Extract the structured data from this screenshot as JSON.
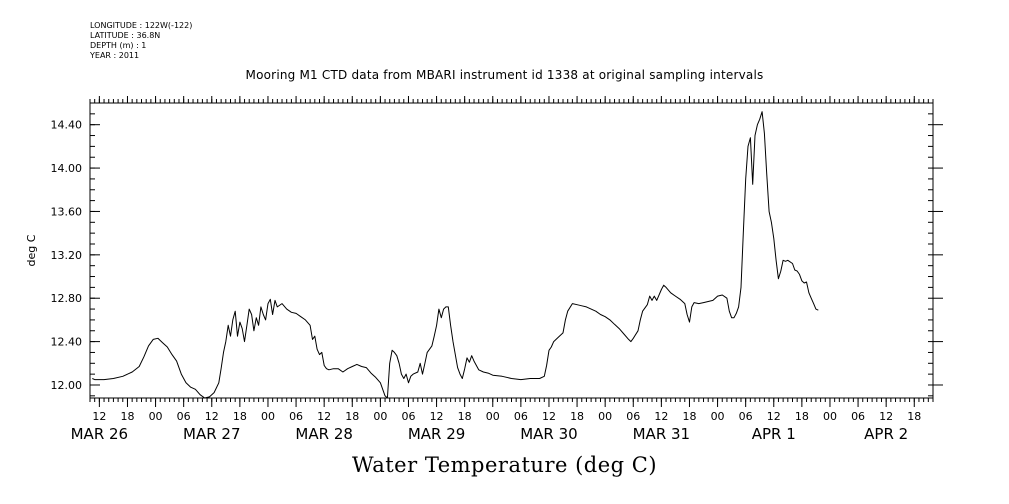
{
  "meta": {
    "longitude": "LONGITUDE : 122W(-122)",
    "latitude": "LATITUDE : 36.8N",
    "depth": "DEPTH (m) : 1",
    "year": "YEAR : 2011"
  },
  "chart_data": {
    "type": "line",
    "title": "Mooring M1 CTD data from MBARI instrument id 1338 at original sampling intervals",
    "xlabel": "Water Temperature (deg C)",
    "ylabel": "deg C",
    "ylim": [
      11.88,
      14.6
    ],
    "yticks": [
      12.0,
      12.4,
      12.8,
      13.2,
      13.6,
      14.0,
      14.4
    ],
    "ytick_labels": [
      "12.00",
      "12.40",
      "12.80",
      "13.20",
      "13.60",
      "14.00",
      "14.40"
    ],
    "x_units": "hours from 2011-03-26 00:00",
    "xlim": [
      10,
      190
    ],
    "xtick_labels": [
      {
        "hour": 12,
        "label": "12"
      },
      {
        "hour": 18,
        "label": "18"
      },
      {
        "hour": 24,
        "label": "00"
      },
      {
        "hour": 30,
        "label": "06"
      },
      {
        "hour": 36,
        "label": "12"
      },
      {
        "hour": 42,
        "label": "18"
      },
      {
        "hour": 48,
        "label": "00"
      },
      {
        "hour": 54,
        "label": "06"
      },
      {
        "hour": 60,
        "label": "12"
      },
      {
        "hour": 66,
        "label": "18"
      },
      {
        "hour": 72,
        "label": "00"
      },
      {
        "hour": 78,
        "label": "06"
      },
      {
        "hour": 84,
        "label": "12"
      },
      {
        "hour": 90,
        "label": "18"
      },
      {
        "hour": 96,
        "label": "00"
      },
      {
        "hour": 102,
        "label": "06"
      },
      {
        "hour": 108,
        "label": "12"
      },
      {
        "hour": 114,
        "label": "18"
      },
      {
        "hour": 120,
        "label": "00"
      },
      {
        "hour": 126,
        "label": "06"
      },
      {
        "hour": 132,
        "label": "12"
      },
      {
        "hour": 138,
        "label": "18"
      },
      {
        "hour": 144,
        "label": "00"
      },
      {
        "hour": 150,
        "label": "06"
      },
      {
        "hour": 156,
        "label": "12"
      },
      {
        "hour": 162,
        "label": "18"
      },
      {
        "hour": 168,
        "label": "00"
      },
      {
        "hour": 174,
        "label": "06"
      },
      {
        "hour": 180,
        "label": "12"
      },
      {
        "hour": 186,
        "label": "18"
      }
    ],
    "day_labels": [
      {
        "hour": 12,
        "label": "MAR 26"
      },
      {
        "hour": 36,
        "label": "MAR 27"
      },
      {
        "hour": 60,
        "label": "MAR 28"
      },
      {
        "hour": 84,
        "label": "MAR 29"
      },
      {
        "hour": 108,
        "label": "MAR 30"
      },
      {
        "hour": 132,
        "label": "MAR 31"
      },
      {
        "hour": 156,
        "label": "APR  1"
      },
      {
        "hour": 180,
        "label": "APR  2"
      }
    ],
    "grid": false,
    "series": [
      {
        "points": [
          [
            10.5,
            12.06
          ],
          [
            11,
            12.05
          ],
          [
            13,
            12.05
          ],
          [
            15,
            12.06
          ],
          [
            17,
            12.08
          ],
          [
            19,
            12.12
          ],
          [
            20.5,
            12.17
          ],
          [
            21.5,
            12.26
          ],
          [
            22.5,
            12.36
          ],
          [
            23.5,
            12.42
          ],
          [
            24.5,
            12.43
          ],
          [
            25.5,
            12.39
          ],
          [
            26.5,
            12.35
          ],
          [
            27.5,
            12.28
          ],
          [
            28.5,
            12.22
          ],
          [
            29.5,
            12.1
          ],
          [
            30.5,
            12.02
          ],
          [
            31.5,
            11.98
          ],
          [
            32.5,
            11.96
          ],
          [
            33.5,
            11.91
          ],
          [
            34.5,
            11.88
          ],
          [
            35.5,
            11.89
          ],
          [
            36.5,
            11.93
          ],
          [
            37.5,
            12.02
          ],
          [
            38,
            12.15
          ],
          [
            38.5,
            12.3
          ],
          [
            39,
            12.4
          ],
          [
            39.5,
            12.55
          ],
          [
            40,
            12.45
          ],
          [
            40.5,
            12.6
          ],
          [
            41,
            12.68
          ],
          [
            41.5,
            12.45
          ],
          [
            42,
            12.58
          ],
          [
            42.5,
            12.52
          ],
          [
            43,
            12.4
          ],
          [
            43.5,
            12.55
          ],
          [
            44,
            12.7
          ],
          [
            44.5,
            12.65
          ],
          [
            45,
            12.5
          ],
          [
            45.5,
            12.62
          ],
          [
            46,
            12.55
          ],
          [
            46.5,
            12.72
          ],
          [
            47,
            12.65
          ],
          [
            47.5,
            12.6
          ],
          [
            48,
            12.75
          ],
          [
            48.5,
            12.79
          ],
          [
            49,
            12.65
          ],
          [
            49.5,
            12.78
          ],
          [
            50,
            12.72
          ],
          [
            51,
            12.75
          ],
          [
            52,
            12.7
          ],
          [
            53,
            12.67
          ],
          [
            54,
            12.66
          ],
          [
            55,
            12.63
          ],
          [
            56,
            12.6
          ],
          [
            57,
            12.55
          ],
          [
            57.5,
            12.42
          ],
          [
            58,
            12.45
          ],
          [
            58.5,
            12.33
          ],
          [
            59,
            12.28
          ],
          [
            59.5,
            12.3
          ],
          [
            60,
            12.18
          ],
          [
            60.5,
            12.15
          ],
          [
            61,
            12.14
          ],
          [
            62,
            12.15
          ],
          [
            63,
            12.15
          ],
          [
            64,
            12.12
          ],
          [
            65,
            12.15
          ],
          [
            66,
            12.17
          ],
          [
            67,
            12.19
          ],
          [
            68,
            12.17
          ],
          [
            69,
            12.16
          ],
          [
            70,
            12.11
          ],
          [
            71,
            12.07
          ],
          [
            72,
            12.02
          ],
          [
            72.5,
            11.96
          ],
          [
            73,
            11.9
          ],
          [
            73.5,
            11.88
          ],
          [
            74,
            12.2
          ],
          [
            74.5,
            12.32
          ],
          [
            75,
            12.3
          ],
          [
            75.5,
            12.27
          ],
          [
            76,
            12.2
          ],
          [
            76.5,
            12.1
          ],
          [
            77,
            12.06
          ],
          [
            77.5,
            12.1
          ],
          [
            78,
            12.02
          ],
          [
            78.5,
            12.08
          ],
          [
            79,
            12.1
          ],
          [
            80,
            12.12
          ],
          [
            80.5,
            12.2
          ],
          [
            81,
            12.1
          ],
          [
            81.5,
            12.2
          ],
          [
            82,
            12.3
          ],
          [
            83,
            12.36
          ],
          [
            83.5,
            12.45
          ],
          [
            84,
            12.55
          ],
          [
            84.5,
            12.7
          ],
          [
            85,
            12.62
          ],
          [
            85.5,
            12.7
          ],
          [
            86,
            12.72
          ],
          [
            86.5,
            12.72
          ],
          [
            87,
            12.55
          ],
          [
            87.5,
            12.4
          ],
          [
            88,
            12.28
          ],
          [
            88.5,
            12.16
          ],
          [
            89,
            12.1
          ],
          [
            89.5,
            12.06
          ],
          [
            90,
            12.15
          ],
          [
            90.5,
            12.25
          ],
          [
            91,
            12.21
          ],
          [
            91.5,
            12.27
          ],
          [
            92,
            12.22
          ],
          [
            93,
            12.14
          ],
          [
            94,
            12.12
          ],
          [
            95,
            12.11
          ],
          [
            96,
            12.09
          ],
          [
            98,
            12.08
          ],
          [
            100,
            12.06
          ],
          [
            102,
            12.05
          ],
          [
            104,
            12.06
          ],
          [
            106,
            12.06
          ],
          [
            107,
            12.08
          ],
          [
            107.5,
            12.18
          ],
          [
            108,
            12.32
          ],
          [
            108.5,
            12.35
          ],
          [
            109,
            12.4
          ],
          [
            110,
            12.44
          ],
          [
            111,
            12.48
          ],
          [
            111.5,
            12.6
          ],
          [
            112,
            12.68
          ],
          [
            113,
            12.75
          ],
          [
            114,
            12.74
          ],
          [
            115,
            12.73
          ],
          [
            116,
            12.72
          ],
          [
            117,
            12.7
          ],
          [
            118,
            12.68
          ],
          [
            119,
            12.65
          ],
          [
            120,
            12.63
          ],
          [
            121,
            12.6
          ],
          [
            122,
            12.56
          ],
          [
            123,
            12.52
          ],
          [
            124,
            12.47
          ],
          [
            125,
            12.42
          ],
          [
            125.5,
            12.4
          ],
          [
            126,
            12.43
          ],
          [
            127,
            12.5
          ],
          [
            127.5,
            12.6
          ],
          [
            128,
            12.68
          ],
          [
            129,
            12.74
          ],
          [
            129.5,
            12.82
          ],
          [
            130,
            12.78
          ],
          [
            130.5,
            12.82
          ],
          [
            131,
            12.78
          ],
          [
            132,
            12.88
          ],
          [
            132.5,
            12.92
          ],
          [
            133,
            12.9
          ],
          [
            134,
            12.85
          ],
          [
            135,
            12.82
          ],
          [
            136,
            12.79
          ],
          [
            137,
            12.75
          ],
          [
            137.5,
            12.65
          ],
          [
            138,
            12.58
          ],
          [
            138.5,
            12.72
          ],
          [
            139,
            12.76
          ],
          [
            140,
            12.75
          ],
          [
            141,
            12.76
          ],
          [
            142,
            12.77
          ],
          [
            143,
            12.78
          ],
          [
            144,
            12.82
          ],
          [
            145,
            12.83
          ],
          [
            146,
            12.8
          ],
          [
            146.5,
            12.68
          ],
          [
            147,
            12.62
          ],
          [
            147.5,
            12.62
          ],
          [
            148,
            12.66
          ],
          [
            148.5,
            12.72
          ],
          [
            149,
            12.9
          ],
          [
            149.5,
            13.4
          ],
          [
            150,
            13.9
          ],
          [
            150.5,
            14.2
          ],
          [
            151,
            14.28
          ],
          [
            151.5,
            13.85
          ],
          [
            152,
            14.3
          ],
          [
            152.5,
            14.4
          ],
          [
            153,
            14.45
          ],
          [
            153.5,
            14.52
          ],
          [
            154,
            14.32
          ],
          [
            154.5,
            13.95
          ],
          [
            155,
            13.6
          ],
          [
            155.5,
            13.5
          ],
          [
            156,
            13.35
          ],
          [
            156.5,
            13.15
          ],
          [
            157,
            12.98
          ],
          [
            157.5,
            13.05
          ],
          [
            158,
            13.15
          ],
          [
            158.5,
            13.14
          ],
          [
            159,
            13.15
          ],
          [
            160,
            13.12
          ],
          [
            160.5,
            13.06
          ],
          [
            161,
            13.05
          ],
          [
            161.5,
            13.02
          ],
          [
            162,
            12.96
          ],
          [
            162.5,
            12.94
          ],
          [
            163,
            12.95
          ],
          [
            163.5,
            12.85
          ],
          [
            164,
            12.8
          ],
          [
            164.5,
            12.75
          ],
          [
            165,
            12.7
          ],
          [
            165.5,
            12.69
          ]
        ]
      }
    ]
  }
}
